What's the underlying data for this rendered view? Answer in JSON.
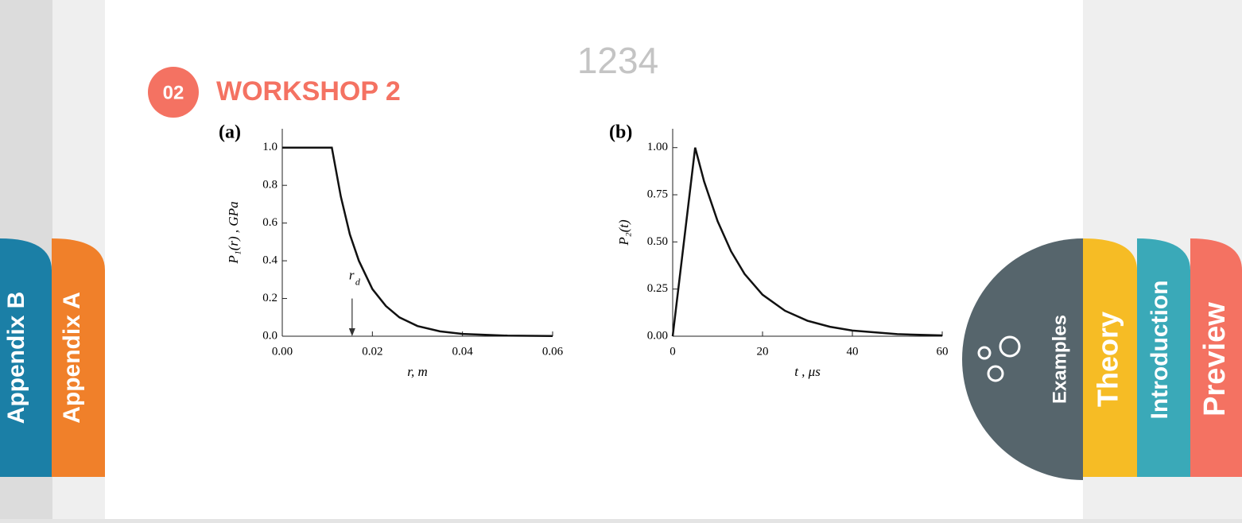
{
  "header": {
    "page_number": "1234",
    "badge": "02",
    "title": "WORKSHOP 2"
  },
  "tabs": {
    "left": [
      "Appendix B",
      "Appendix A"
    ],
    "right": [
      "Examples",
      "Theory",
      "Introduction",
      "Preview"
    ]
  },
  "chart_data": [
    {
      "type": "line",
      "panel_label": "(a)",
      "xlabel": "r, m",
      "ylabel": "P₁(r) , GPa",
      "x": [
        0,
        0.011,
        0.013,
        0.015,
        0.017,
        0.02,
        0.023,
        0.026,
        0.03,
        0.035,
        0.04,
        0.05,
        0.06
      ],
      "series": [
        {
          "color": "#111111",
          "values": [
            1,
            1,
            0.74,
            0.54,
            0.4,
            0.25,
            0.16,
            0.1,
            0.054,
            0.026,
            0.012,
            0.003,
            0.001
          ]
        }
      ],
      "xlim": [
        0,
        0.06
      ],
      "ylim": [
        0,
        1.1
      ],
      "xticks": [
        {
          "value": 0,
          "label": "0.00"
        },
        {
          "value": 0.02,
          "label": "0.02"
        },
        {
          "value": 0.04,
          "label": "0.04"
        },
        {
          "value": 0.06,
          "label": "0.06"
        }
      ],
      "yticks": [
        {
          "value": 0,
          "label": "0.0"
        },
        0.2,
        0.4,
        0.6,
        0.8,
        {
          "value": 1,
          "label": "1.0"
        }
      ],
      "annotation": {
        "text": "r",
        "subscript": "d",
        "x": 0.0155,
        "y_from": 0.2,
        "y_to": 0
      }
    },
    {
      "type": "line",
      "panel_label": "(b)",
      "xlabel": "t ,  μs",
      "ylabel": "P₂(t)",
      "x": [
        0,
        5,
        7,
        10,
        13,
        16,
        20,
        25,
        30,
        35,
        40,
        50,
        60
      ],
      "series": [
        {
          "color": "#111111",
          "values": [
            0,
            1,
            0.82,
            0.61,
            0.45,
            0.33,
            0.22,
            0.135,
            0.082,
            0.05,
            0.03,
            0.011,
            0.004
          ]
        }
      ],
      "xlim": [
        0,
        60
      ],
      "ylim": [
        0,
        1.1
      ],
      "xticks": [
        0,
        20,
        40,
        60
      ],
      "yticks": [
        {
          "value": 0,
          "label": "0.00"
        },
        0.25,
        {
          "value": 0.5,
          "label": "0.50"
        },
        0.75,
        {
          "value": 1,
          "label": "1.00"
        }
      ]
    }
  ]
}
